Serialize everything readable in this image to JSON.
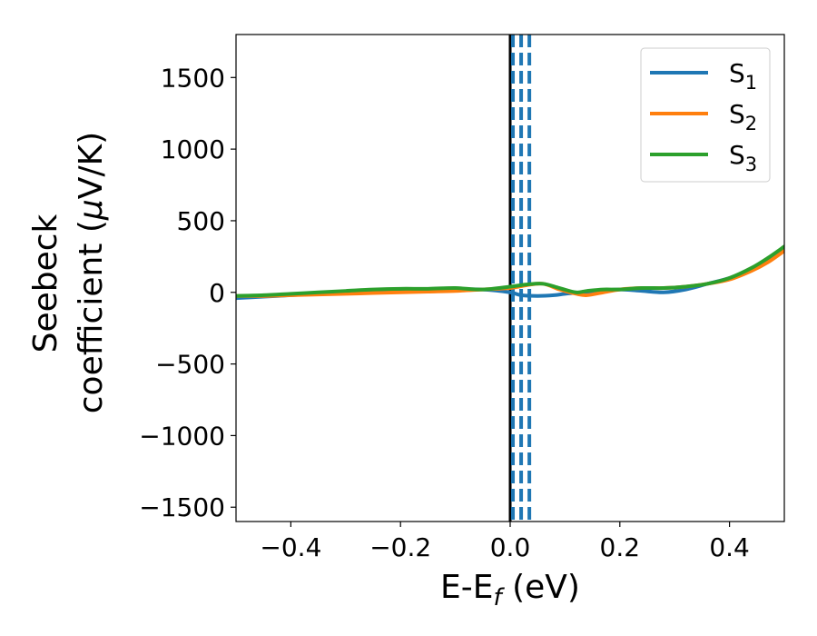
{
  "chart_data": {
    "type": "line",
    "xlabel": {
      "base": "E-E",
      "sub": "f",
      "suffix": " (eV)"
    },
    "ylabel": {
      "line1": "Seebeck",
      "line2_prefix": "coefficient  (",
      "mu": "μ",
      "line2_suffix": "V/K)"
    },
    "xlim": [
      -0.5,
      0.5
    ],
    "ylim": [
      -1600,
      1800
    ],
    "x_ticks": [
      -0.4,
      -0.2,
      0.0,
      0.2,
      0.4
    ],
    "x_tick_labels": [
      "−0.4",
      "−0.2",
      "0.0",
      "0.2",
      "0.4"
    ],
    "y_ticks": [
      -1500,
      -1000,
      -500,
      0,
      500,
      1000,
      1500
    ],
    "y_tick_labels": [
      "−1500",
      "−1000",
      "−500",
      "0",
      "500",
      "1000",
      "1500"
    ],
    "grid": false,
    "legend_position": "top-right",
    "vertical_lines": [
      {
        "x": 0.0,
        "color": "#000000",
        "style": "solid"
      },
      {
        "x": 0.005,
        "color": "#1f77b4",
        "style": "dashed"
      },
      {
        "x": 0.02,
        "color": "#1f77b4",
        "style": "dashed"
      },
      {
        "x": 0.035,
        "color": "#1f77b4",
        "style": "dashed"
      }
    ],
    "series": [
      {
        "name": "S",
        "sub": "1",
        "color": "#1f77b4",
        "x": [
          -0.5,
          -0.45,
          -0.4,
          -0.35,
          -0.3,
          -0.25,
          -0.2,
          -0.15,
          -0.1,
          -0.05,
          0.0,
          0.02,
          0.05,
          0.08,
          0.1,
          0.13,
          0.16,
          0.2,
          0.24,
          0.28,
          0.32,
          0.36,
          0.4,
          0.44,
          0.47,
          0.5
        ],
        "y": [
          -40,
          -30,
          -20,
          -10,
          0,
          5,
          10,
          15,
          20,
          20,
          0,
          -20,
          -25,
          -20,
          -10,
          0,
          10,
          20,
          10,
          0,
          20,
          60,
          100,
          160,
          220,
          300
        ]
      },
      {
        "name": "S",
        "sub": "2",
        "color": "#ff7f0e",
        "x": [
          -0.5,
          -0.45,
          -0.4,
          -0.35,
          -0.3,
          -0.25,
          -0.2,
          -0.15,
          -0.1,
          -0.05,
          0.0,
          0.03,
          0.06,
          0.09,
          0.12,
          0.14,
          0.17,
          0.2,
          0.24,
          0.28,
          0.32,
          0.36,
          0.4,
          0.44,
          0.47,
          0.5
        ],
        "y": [
          -25,
          -25,
          -20,
          -15,
          -10,
          -5,
          0,
          5,
          10,
          20,
          30,
          50,
          60,
          20,
          -10,
          -20,
          0,
          20,
          30,
          30,
          40,
          60,
          90,
          150,
          210,
          290
        ]
      },
      {
        "name": "S",
        "sub": "3",
        "color": "#2ca02c",
        "x": [
          -0.5,
          -0.45,
          -0.4,
          -0.35,
          -0.3,
          -0.25,
          -0.2,
          -0.15,
          -0.1,
          -0.05,
          0.0,
          0.03,
          0.06,
          0.09,
          0.12,
          0.14,
          0.17,
          0.2,
          0.24,
          0.28,
          0.32,
          0.36,
          0.4,
          0.44,
          0.47,
          0.5
        ],
        "y": [
          -25,
          -20,
          -10,
          0,
          10,
          20,
          25,
          25,
          30,
          20,
          40,
          55,
          60,
          30,
          0,
          10,
          20,
          20,
          30,
          30,
          40,
          60,
          100,
          170,
          240,
          320
        ]
      }
    ]
  }
}
